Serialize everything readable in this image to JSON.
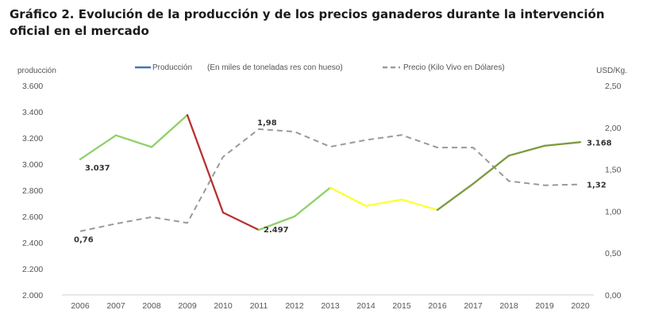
{
  "title": {
    "line1": "Gráfico 2. Evolución de la producción y de los precios ganaderos durante la intervención",
    "line2": "oficial en el mercado"
  },
  "chart_data": {
    "type": "line",
    "x": [
      "2006",
      "2007",
      "2008",
      "2009",
      "2010",
      "2011",
      "2012",
      "2013",
      "2014",
      "2015",
      "2016",
      "2017",
      "2018",
      "2019",
      "2020"
    ],
    "y_left_label": "producción",
    "y_right_label": "USD/Kg.",
    "y_left_ticks": [
      "2.000",
      "2.200",
      "2.400",
      "2.600",
      "2.800",
      "3.000",
      "3.200",
      "3.400",
      "3.600"
    ],
    "y_right_ticks": [
      "0,00",
      "0,50",
      "1,00",
      "1,50",
      "2,00",
      "2,50"
    ],
    "y_left_range": [
      2000,
      3600
    ],
    "y_right_range": [
      0,
      2.5
    ],
    "legend_position": "top-center",
    "series": [
      {
        "name": "Producción",
        "legend_note": "(En miles de toneladas res con hueso)",
        "axis": "left",
        "legend_color": "#4472c4",
        "values": [
          3037,
          3220,
          3130,
          3375,
          2630,
          2497,
          2600,
          2820,
          2680,
          2730,
          2650,
          2850,
          3065,
          3140,
          3168
        ],
        "segment_colors": [
          "#8fd16a",
          "#8fd16a",
          "#8fd16a",
          "#b8312f",
          "#b8312f",
          "#8fd16a",
          "#8fd16a",
          "#ffff33",
          "#ffff33",
          "#ffff33",
          "#7c9a3e",
          "#7c9a3e",
          "#7c9a3e",
          "#7c9a3e"
        ]
      },
      {
        "name": "Precio (Kilo Vivo en Dólares)",
        "axis": "right",
        "color": "#999999",
        "dash": true,
        "values": [
          0.76,
          0.85,
          0.93,
          0.86,
          1.65,
          1.98,
          1.95,
          1.77,
          1.85,
          1.91,
          1.76,
          1.76,
          1.36,
          1.31,
          1.32
        ]
      }
    ],
    "data_labels": [
      {
        "series": 0,
        "index": 0,
        "text": "3.037"
      },
      {
        "series": 0,
        "index": 5,
        "text": "2.497"
      },
      {
        "series": 0,
        "index": 14,
        "text": "3.168"
      },
      {
        "series": 1,
        "index": 0,
        "text": "0,76"
      },
      {
        "series": 1,
        "index": 5,
        "text": "1,98"
      },
      {
        "series": 1,
        "index": 14,
        "text": "1,32"
      }
    ]
  }
}
